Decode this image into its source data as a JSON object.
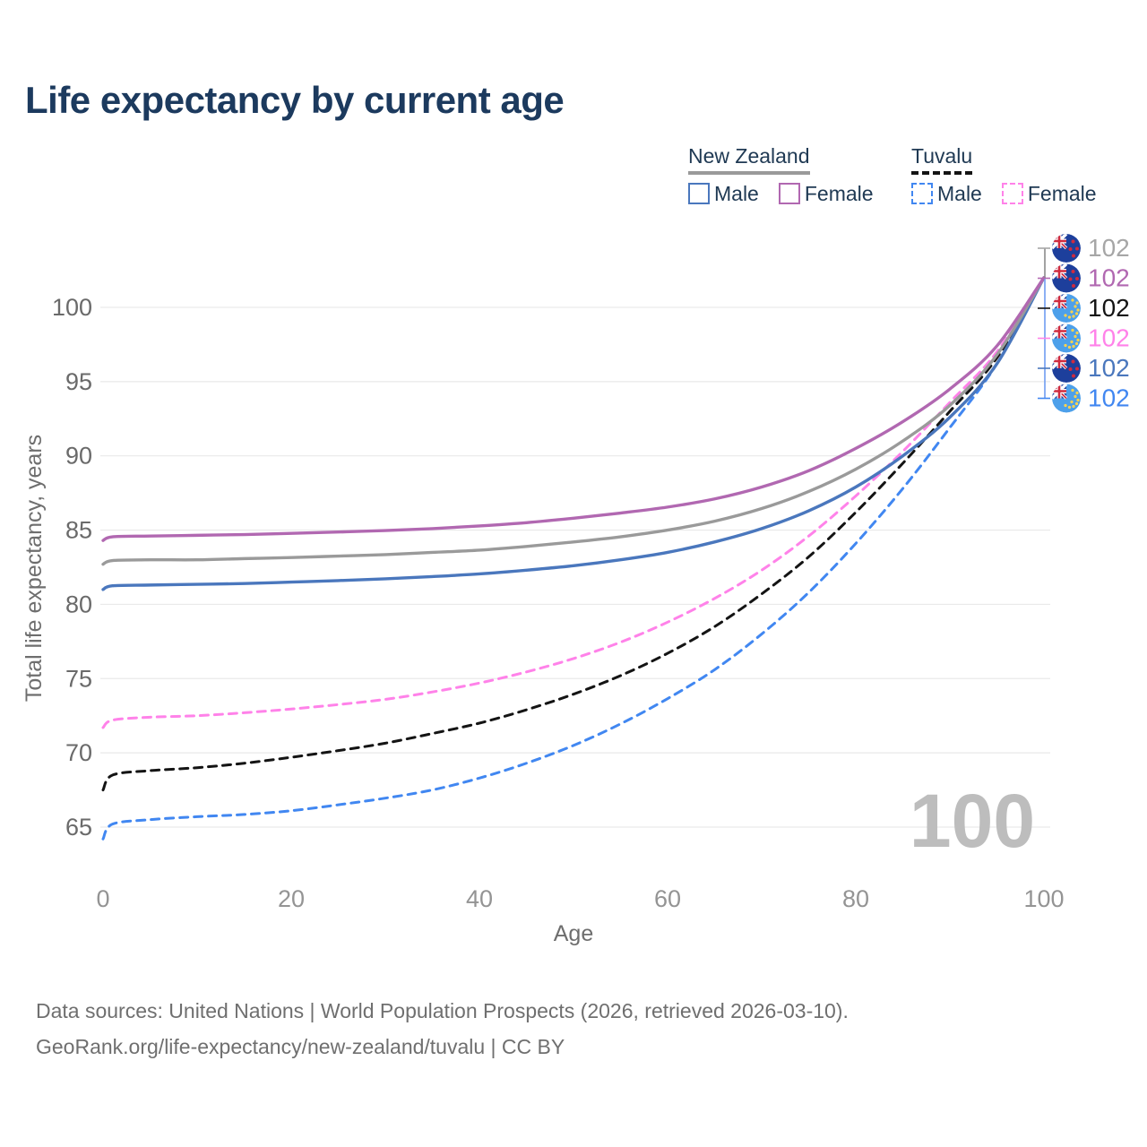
{
  "title": "Life expectancy by current age",
  "legend": {
    "groups": [
      {
        "country": "New Zealand",
        "line_style": "solid",
        "underline_color": "#9a9a9a",
        "items": [
          {
            "label": "Male",
            "color": "#4a77bd",
            "dashed": false
          },
          {
            "label": "Female",
            "color": "#b168b1",
            "dashed": false
          }
        ]
      },
      {
        "country": "Tuvalu",
        "line_style": "dashed",
        "underline_color": "#141414",
        "items": [
          {
            "label": "Male",
            "color": "#4187f1",
            "dashed": true
          },
          {
            "label": "Female",
            "color": "#ff82e9",
            "dashed": true
          }
        ]
      }
    ]
  },
  "chart_data": {
    "type": "line",
    "title": "Life expectancy by current age",
    "xlabel": "Age",
    "ylabel": "Total life expectancy, years",
    "xlim": [
      0,
      100
    ],
    "ylim": [
      63,
      103
    ],
    "xticks": [
      0,
      20,
      40,
      60,
      80,
      100
    ],
    "yticks": [
      65,
      70,
      75,
      80,
      85,
      90,
      95,
      100
    ],
    "grid": "horizontal",
    "watermark": "100",
    "x": [
      0,
      1,
      5,
      10,
      15,
      20,
      25,
      30,
      35,
      40,
      45,
      50,
      55,
      60,
      65,
      70,
      75,
      80,
      85,
      90,
      95,
      100
    ],
    "series": [
      {
        "id": "tv-male",
        "country": "Tuvalu",
        "legend_label": "Male",
        "color": "#4187f1",
        "dashed": true,
        "end_label": "102",
        "values": [
          64.2,
          65.2,
          65.5,
          65.7,
          65.85,
          66.1,
          66.5,
          66.95,
          67.5,
          68.3,
          69.3,
          70.5,
          71.95,
          73.65,
          75.6,
          78.0,
          80.8,
          84.1,
          87.8,
          91.9,
          96.2,
          102
        ]
      },
      {
        "id": "tv-both",
        "country": "Tuvalu",
        "legend_label": null,
        "color": "#141414",
        "dashed": true,
        "end_label": "102",
        "values": [
          67.5,
          68.5,
          68.8,
          69.0,
          69.3,
          69.7,
          70.15,
          70.65,
          71.3,
          72.0,
          72.9,
          73.95,
          75.2,
          76.7,
          78.5,
          80.7,
          83.2,
          86.2,
          89.5,
          93.0,
          96.6,
          102
        ]
      },
      {
        "id": "tv-female",
        "country": "Tuvalu",
        "legend_label": "Female",
        "color": "#ff82e9",
        "dashed": true,
        "end_label": "102",
        "values": [
          71.7,
          72.2,
          72.4,
          72.5,
          72.7,
          72.95,
          73.25,
          73.6,
          74.1,
          74.7,
          75.45,
          76.35,
          77.45,
          78.8,
          80.4,
          82.3,
          84.6,
          87.3,
          90.3,
          93.6,
          97.0,
          102
        ]
      },
      {
        "id": "nz-male",
        "country": "New Zealand",
        "legend_label": "Male",
        "color": "#4a77bd",
        "dashed": false,
        "end_label": "102",
        "values": [
          81.0,
          81.25,
          81.3,
          81.35,
          81.4,
          81.5,
          81.6,
          81.72,
          81.87,
          82.05,
          82.3,
          82.6,
          83.0,
          83.5,
          84.2,
          85.1,
          86.3,
          87.9,
          90.0,
          92.6,
          96.2,
          102
        ]
      },
      {
        "id": "nz-both",
        "country": "New Zealand",
        "legend_label": null,
        "color": "#9a9a9a",
        "dashed": false,
        "end_label": "102",
        "values": [
          82.7,
          82.95,
          83.0,
          83.0,
          83.08,
          83.15,
          83.25,
          83.35,
          83.5,
          83.65,
          83.9,
          84.2,
          84.55,
          85.0,
          85.6,
          86.45,
          87.6,
          89.1,
          91.0,
          93.4,
          96.8,
          102
        ]
      },
      {
        "id": "nz-female",
        "country": "New Zealand",
        "legend_label": "Female",
        "color": "#b168b1",
        "dashed": false,
        "end_label": "102",
        "values": [
          84.3,
          84.55,
          84.6,
          84.65,
          84.7,
          84.78,
          84.87,
          84.97,
          85.1,
          85.28,
          85.5,
          85.8,
          86.15,
          86.55,
          87.1,
          87.9,
          89.0,
          90.5,
          92.3,
          94.5,
          97.4,
          102
        ]
      }
    ],
    "end_labels": [
      {
        "text": "102",
        "flag": "new-zealand",
        "color": "#a6a6a6",
        "series_id": "nz-both"
      },
      {
        "text": "102",
        "flag": "new-zealand",
        "color": "#b168b1",
        "series_id": "nz-female"
      },
      {
        "text": "102",
        "flag": "tuvalu",
        "color": "#141414",
        "series_id": "tv-both"
      },
      {
        "text": "102",
        "flag": "tuvalu",
        "color": "#ff82e9",
        "series_id": "tv-female"
      },
      {
        "text": "102",
        "flag": "new-zealand",
        "color": "#4a77bd",
        "series_id": "nz-male"
      },
      {
        "text": "102",
        "flag": "tuvalu",
        "color": "#4187f1",
        "series_id": "tv-male"
      }
    ]
  },
  "colors": {
    "title_text": "#1c3a5e",
    "legend_text": "#203a54",
    "grid": "#e9e9e9",
    "y_tick_text": "#6a6a6a",
    "x_tick_text": "#949494",
    "axis_title_text": "#6e6e6e",
    "watermark_text": "#bdbdbd",
    "footer_text": "#6f6f6f",
    "flag_nz_blue": "#1d3f9c",
    "flag_tv_blue": "#4da0ea"
  },
  "footer": {
    "line1": "Data sources: United Nations | World Population Prospects (2026, retrieved 2026-03-10).",
    "line2": "GeoRank.org/life-expectancy/new-zealand/tuvalu | CC BY"
  }
}
